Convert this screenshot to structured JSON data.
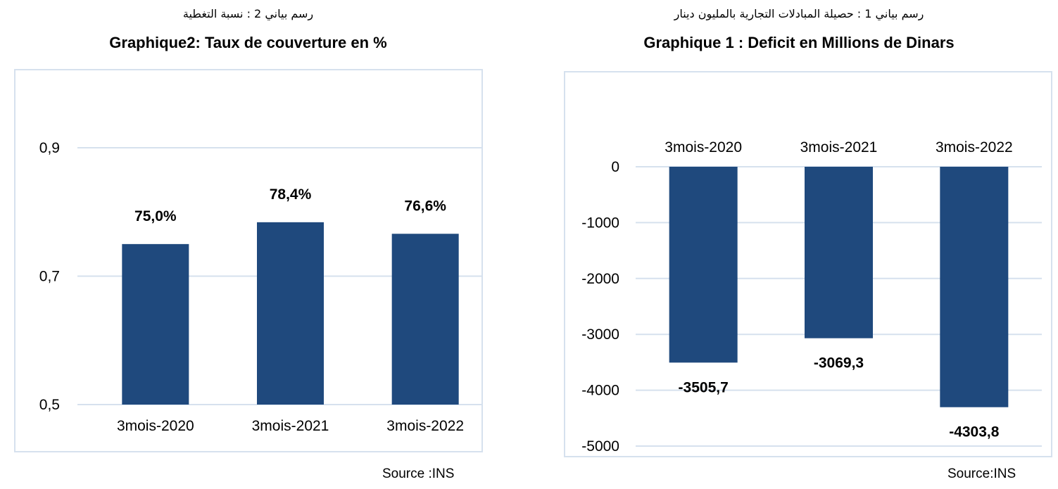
{
  "charts": [
    {
      "title_ar": "رسم بياني 2 : نسبة التغطية",
      "title_fr": "Graphique2: Taux de couverture en %",
      "source": "Source :INS"
    },
    {
      "title_ar": "رسم بياني 1 : حصيلة المبادلات التجارية بالمليون دينار",
      "title_fr": "Graphique 1 : Deficit en Millions de Dinars",
      "source": "Source:INS"
    }
  ],
  "colors": {
    "bar": "#1f497d",
    "grid": "#d6e1ee",
    "frame": "#d6e1ee"
  },
  "chart_data": [
    {
      "type": "bar",
      "title": "Graphique2: Taux de couverture en %",
      "categories": [
        "3mois-2020",
        "3mois-2021",
        "3mois-2022"
      ],
      "values": [
        0.75,
        0.784,
        0.766
      ],
      "data_labels": [
        "75,0%",
        "78,4%",
        "76,6%"
      ],
      "ylim": [
        0.5,
        0.9
      ],
      "yticks": [
        0.5,
        0.7,
        0.9
      ],
      "ytick_labels": [
        "0,5",
        "0,7",
        "0,9"
      ],
      "grid": true
    },
    {
      "type": "bar",
      "title": "Graphique 1 : Deficit en Millions de Dinars",
      "categories": [
        "3mois-2020",
        "3mois-2021",
        "3mois-2022"
      ],
      "values": [
        -3505.7,
        -3069.3,
        -4303.8
      ],
      "data_labels": [
        "-3505,7",
        "-3069,3",
        "-4303,8"
      ],
      "ylim": [
        -5000,
        0
      ],
      "yticks": [
        0,
        -1000,
        -2000,
        -3000,
        -4000,
        -5000
      ],
      "ytick_labels": [
        "0",
        "-1000",
        "-2000",
        "-3000",
        "-4000",
        "-5000"
      ],
      "grid": true
    }
  ]
}
